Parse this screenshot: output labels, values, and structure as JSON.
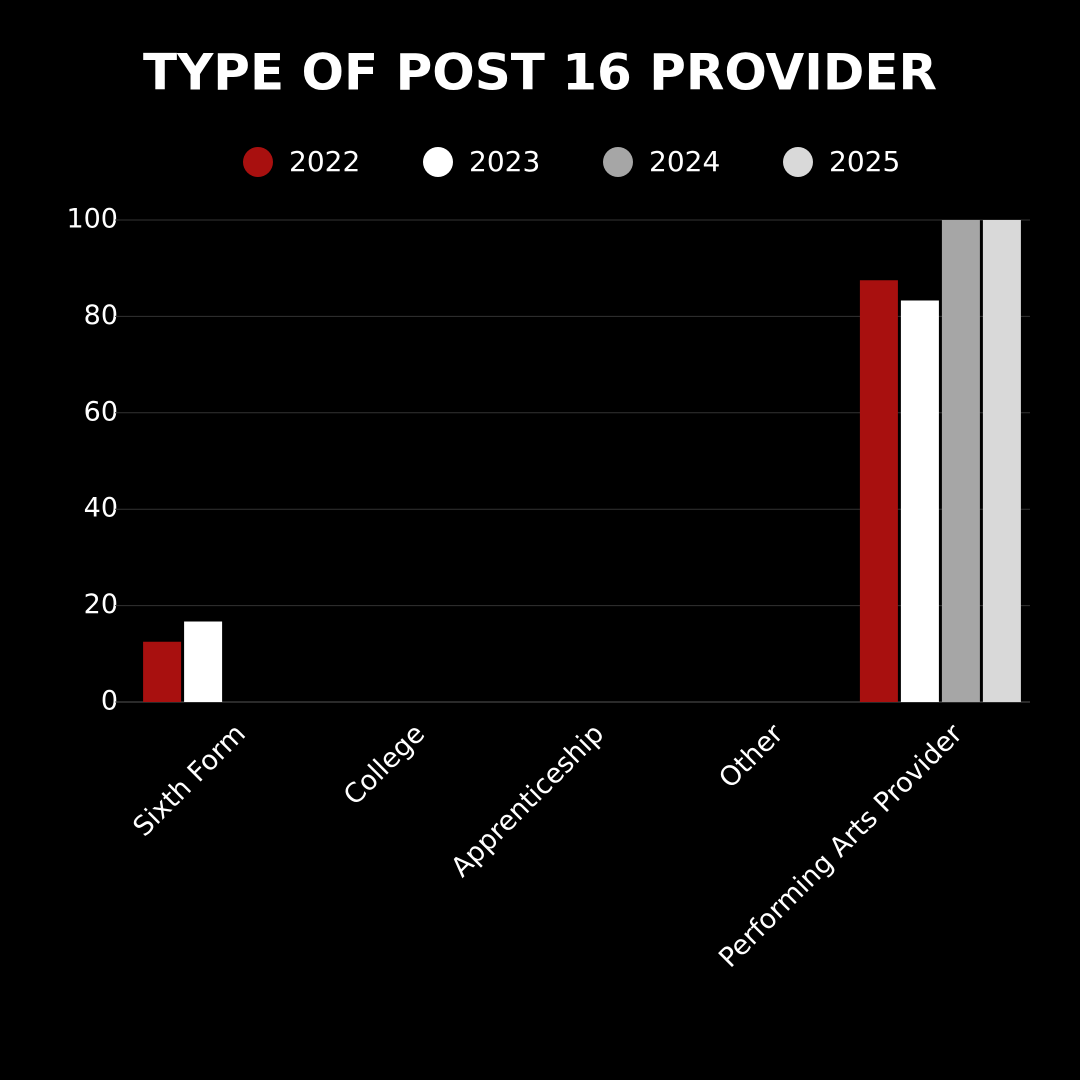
{
  "chart_data": {
    "type": "bar",
    "title": "TYPE OF POST 16 PROVIDER",
    "categories": [
      "Sixth Form",
      "College",
      "Apprenticeship",
      "Other",
      "Performing Arts Provider"
    ],
    "series": [
      {
        "name": "2022",
        "color": "#a8100f",
        "values": [
          12.5,
          0,
          0,
          0,
          87.5
        ]
      },
      {
        "name": "2023",
        "color": "#ffffff",
        "values": [
          16.7,
          0,
          0,
          0,
          83.3
        ]
      },
      {
        "name": "2024",
        "color": "#a6a6a6",
        "values": [
          0,
          0,
          0,
          0,
          100
        ]
      },
      {
        "name": "2025",
        "color": "#d9d9d9",
        "values": [
          0,
          0,
          0,
          0,
          100
        ]
      }
    ],
    "ylim": [
      0,
      100
    ],
    "yticks": [
      0,
      20,
      40,
      60,
      80,
      100
    ],
    "grid": true,
    "legend": "top"
  }
}
